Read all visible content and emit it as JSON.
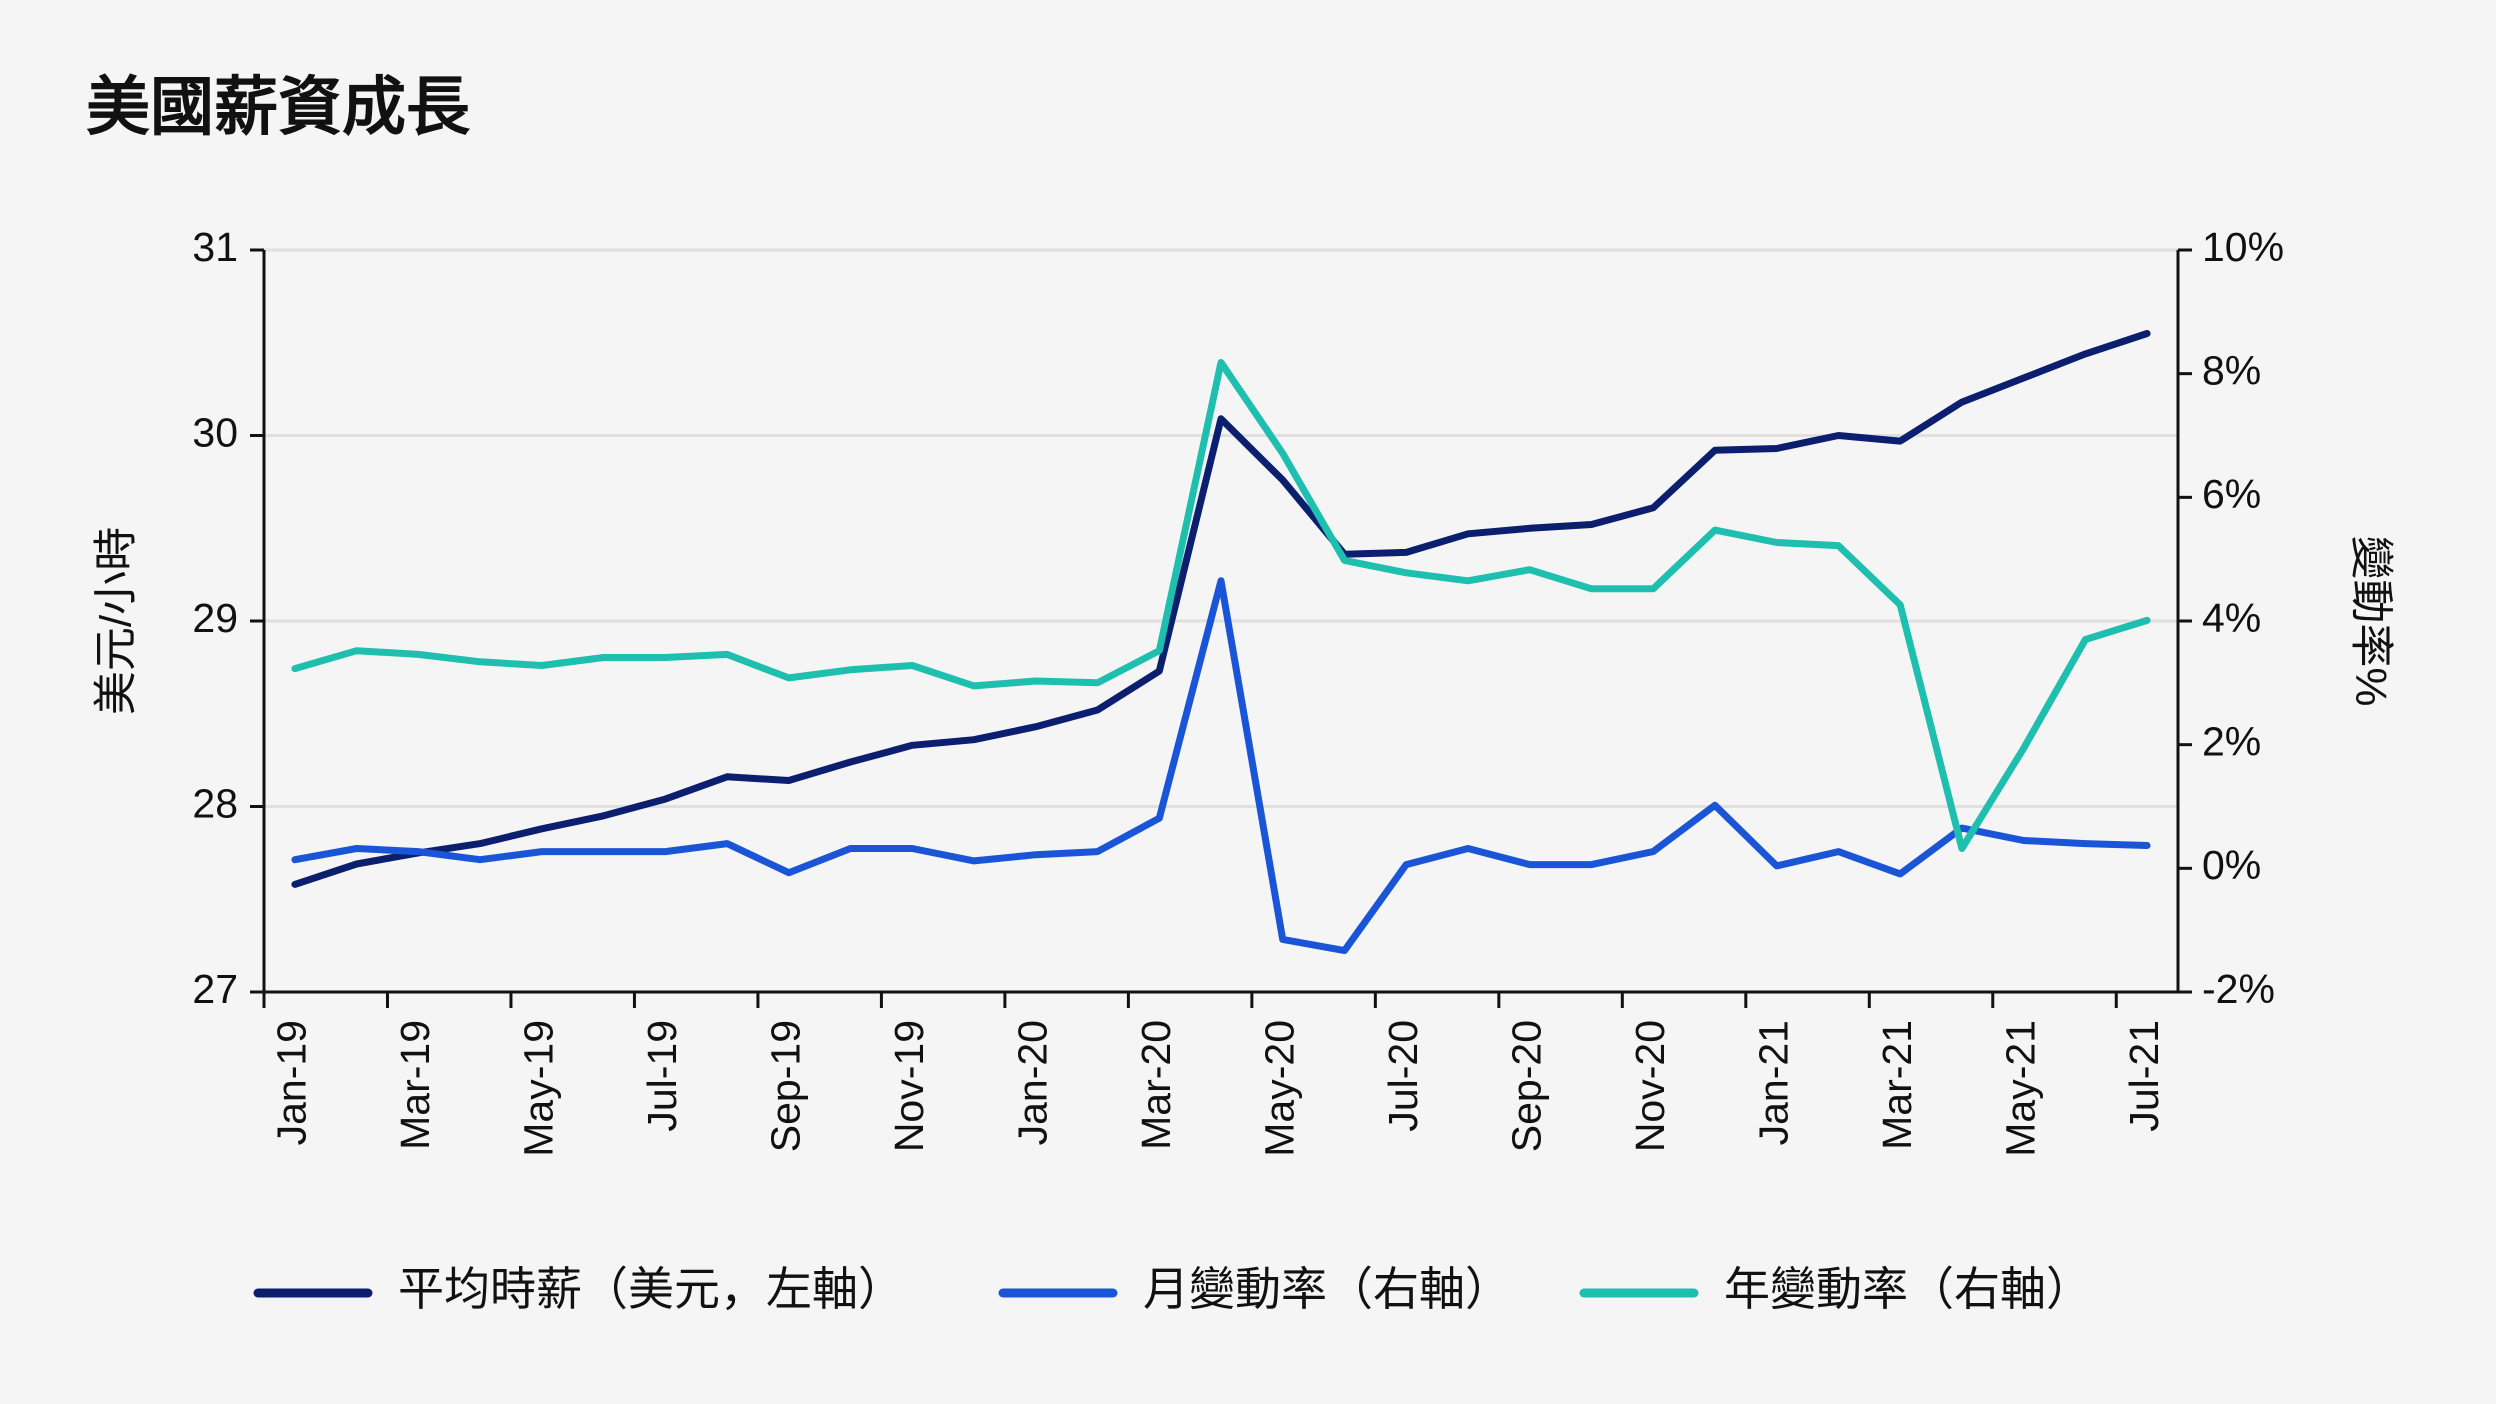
{
  "chart_data": {
    "type": "line",
    "title": "美國薪資成長",
    "ylabel": "美元/小時",
    "y2label": "變動率%",
    "categories": [
      "Jan-19",
      null,
      "Mar-19",
      null,
      "May-19",
      null,
      "Jul-19",
      null,
      "Sep-19",
      null,
      "Nov-19",
      null,
      "Jan-20",
      null,
      "Mar-20",
      null,
      "May-20",
      null,
      "Jul-20",
      null,
      "Sep-20",
      null,
      "Nov-20",
      null,
      "Jan-21",
      null,
      "Mar-21",
      null,
      "May-21",
      null,
      "Jul-21"
    ],
    "series": [
      {
        "name": "平均時薪（美元，左軸）",
        "color": "#0b1f6e",
        "values": [
          27.58,
          27.69,
          27.75,
          27.8,
          27.88,
          27.95,
          28.04,
          28.16,
          28.14,
          28.24,
          28.33,
          28.36,
          28.43,
          28.52,
          28.73,
          30.09,
          29.76,
          29.36,
          29.37,
          29.47,
          29.5,
          29.52,
          29.61,
          29.92,
          29.93,
          30.0,
          29.97,
          30.18,
          30.31,
          30.44,
          30.55
        ]
      },
      {
        "name": "月變動率（右軸）",
        "color": "#1a55d8",
        "axis": "y2",
        "values": [
          0.14,
          0.32,
          0.27,
          0.14,
          0.27,
          0.27,
          0.27,
          0.4,
          -0.07,
          0.32,
          0.32,
          0.12,
          0.22,
          0.27,
          0.81,
          4.65,
          -1.15,
          -1.33,
          0.06,
          0.32,
          0.06,
          0.06,
          0.27,
          1.02,
          0.04,
          0.27,
          -0.09,
          0.65,
          0.45,
          0.4,
          0.37
        ]
      },
      {
        "name": "年變動率（右軸）",
        "color": "#1fbfb0",
        "axis": "y2",
        "values": [
          3.23,
          3.52,
          3.46,
          3.34,
          3.28,
          3.41,
          3.41,
          3.46,
          3.08,
          3.21,
          3.28,
          2.95,
          3.03,
          3.0,
          3.52,
          8.18,
          6.71,
          4.98,
          4.78,
          4.65,
          4.83,
          4.52,
          4.52,
          5.47,
          5.27,
          5.22,
          4.26,
          0.32,
          1.94,
          3.7,
          4.01
        ]
      }
    ],
    "ylim": [
      27,
      31
    ],
    "yticks": [
      27,
      28,
      29,
      30,
      31
    ],
    "y2lim": [
      -2,
      10
    ],
    "y2ticks": [
      {
        "value": -2,
        "label": "-2%"
      },
      {
        "value": 0,
        "label": "0%"
      },
      {
        "value": 2,
        "label": "2%"
      },
      {
        "value": 4,
        "label": "4%"
      },
      {
        "value": 6,
        "label": "6%"
      },
      {
        "value": 8,
        "label": "8%"
      },
      {
        "value": 10,
        "label": "10%"
      }
    ],
    "grid": true,
    "legend": "bottom"
  }
}
